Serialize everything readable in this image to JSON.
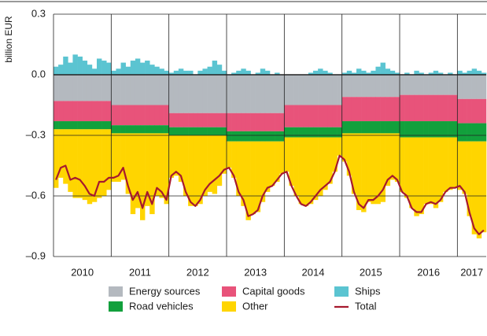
{
  "chart_data": {
    "type": "bar",
    "stacked": true,
    "ylabel": "billion EUR",
    "categories": [
      null,
      null,
      null,
      null,
      null,
      null,
      "2010",
      null,
      null,
      null,
      null,
      null,
      null,
      null,
      null,
      null,
      null,
      null,
      "2011",
      null,
      null,
      null,
      null,
      null,
      null,
      null,
      null,
      null,
      null,
      null,
      "2012",
      null,
      null,
      null,
      null,
      null,
      null,
      null,
      null,
      null,
      null,
      null,
      "2013",
      null,
      null,
      null,
      null,
      null,
      null,
      null,
      null,
      null,
      null,
      null,
      "2014",
      null,
      null,
      null,
      null,
      null,
      null,
      null,
      null,
      null,
      null,
      null,
      "2015",
      null,
      null,
      null,
      null,
      null,
      null,
      null,
      null,
      null,
      null,
      null,
      "2016",
      null,
      null,
      null,
      null,
      null,
      null,
      null,
      null,
      "2017",
      null,
      null
    ],
    "ylim": [
      -0.9,
      0.3
    ],
    "yticks": [
      0.3,
      {
        "value": 0,
        "label": "0.0"
      },
      {
        "value": -0.3,
        "label": "–0.3"
      },
      {
        "value": -0.6,
        "label": "–0.6"
      },
      {
        "value": -0.9,
        "label": "–0.9"
      }
    ],
    "grid": true,
    "series": [
      {
        "name": "Ships",
        "color": "#5bc4d1",
        "values": [
          0.04,
          0.05,
          0.09,
          0.06,
          0.1,
          0.09,
          0.07,
          0.05,
          0.03,
          0.08,
          0.07,
          0.06,
          0.02,
          0.03,
          0.06,
          0.04,
          0.07,
          0.08,
          0.06,
          0.07,
          0.05,
          0.04,
          0.03,
          0.02,
          0.01,
          0.02,
          0.03,
          0.02,
          0.02,
          0,
          0.02,
          0.03,
          0.04,
          0.07,
          0.05,
          0.02,
          0,
          0.01,
          0.02,
          0.03,
          0.02,
          0,
          0.01,
          0.03,
          0.02,
          0,
          0.01,
          0,
          0,
          0,
          0,
          0,
          0,
          0.01,
          0.02,
          0.03,
          0.02,
          0.01,
          0,
          0,
          0.01,
          0.02,
          0.01,
          0.03,
          0.02,
          0.01,
          0.02,
          0.04,
          0.06,
          0.03,
          0.02,
          0.01,
          0,
          0.01,
          0,
          0.02,
          0.01,
          0,
          0.01,
          0.02,
          0.01,
          0,
          0.01,
          0,
          0.02,
          0.01,
          0.02,
          0.03,
          0.02,
          0.01
        ]
      },
      {
        "name": "Energy sources",
        "color": "#b4b9bf",
        "values": [
          -0.13,
          -0.13,
          -0.13,
          -0.13,
          -0.13,
          -0.13,
          -0.13,
          -0.13,
          -0.13,
          -0.13,
          -0.13,
          -0.13,
          -0.15,
          -0.15,
          -0.15,
          -0.15,
          -0.15,
          -0.15,
          -0.15,
          -0.15,
          -0.15,
          -0.15,
          -0.15,
          -0.15,
          -0.19,
          -0.19,
          -0.19,
          -0.19,
          -0.19,
          -0.19,
          -0.19,
          -0.19,
          -0.19,
          -0.19,
          -0.19,
          -0.19,
          -0.19,
          -0.19,
          -0.19,
          -0.19,
          -0.19,
          -0.19,
          -0.19,
          -0.19,
          -0.19,
          -0.19,
          -0.19,
          -0.19,
          -0.15,
          -0.15,
          -0.15,
          -0.15,
          -0.15,
          -0.15,
          -0.15,
          -0.15,
          -0.15,
          -0.15,
          -0.15,
          -0.15,
          -0.11,
          -0.11,
          -0.11,
          -0.11,
          -0.11,
          -0.11,
          -0.11,
          -0.11,
          -0.11,
          -0.11,
          -0.11,
          -0.11,
          -0.1,
          -0.1,
          -0.1,
          -0.1,
          -0.1,
          -0.1,
          -0.1,
          -0.1,
          -0.1,
          -0.1,
          -0.1,
          -0.1,
          -0.12,
          -0.12,
          -0.12,
          -0.12,
          -0.12,
          -0.12
        ]
      },
      {
        "name": "Capital goods",
        "color": "#e8537a",
        "values": [
          -0.1,
          -0.1,
          -0.1,
          -0.1,
          -0.1,
          -0.1,
          -0.1,
          -0.1,
          -0.1,
          -0.1,
          -0.1,
          -0.1,
          -0.1,
          -0.1,
          -0.1,
          -0.1,
          -0.1,
          -0.1,
          -0.1,
          -0.1,
          -0.1,
          -0.1,
          -0.1,
          -0.1,
          -0.07,
          -0.07,
          -0.07,
          -0.07,
          -0.07,
          -0.07,
          -0.07,
          -0.07,
          -0.07,
          -0.07,
          -0.07,
          -0.07,
          -0.09,
          -0.09,
          -0.09,
          -0.09,
          -0.09,
          -0.09,
          -0.09,
          -0.09,
          -0.09,
          -0.09,
          -0.09,
          -0.09,
          -0.11,
          -0.11,
          -0.11,
          -0.11,
          -0.11,
          -0.11,
          -0.11,
          -0.11,
          -0.11,
          -0.11,
          -0.11,
          -0.11,
          -0.12,
          -0.12,
          -0.12,
          -0.12,
          -0.12,
          -0.12,
          -0.12,
          -0.12,
          -0.12,
          -0.12,
          -0.12,
          -0.12,
          -0.13,
          -0.13,
          -0.13,
          -0.13,
          -0.13,
          -0.13,
          -0.13,
          -0.13,
          -0.13,
          -0.13,
          -0.13,
          -0.13,
          -0.12,
          -0.12,
          -0.12,
          -0.12,
          -0.12,
          -0.12
        ]
      },
      {
        "name": "Road vehicles",
        "color": "#12a03c",
        "values": [
          -0.04,
          -0.04,
          -0.04,
          -0.04,
          -0.04,
          -0.04,
          -0.04,
          -0.04,
          -0.04,
          -0.04,
          -0.04,
          -0.04,
          -0.04,
          -0.04,
          -0.04,
          -0.04,
          -0.04,
          -0.04,
          -0.04,
          -0.04,
          -0.04,
          -0.04,
          -0.04,
          -0.04,
          -0.04,
          -0.04,
          -0.04,
          -0.04,
          -0.04,
          -0.04,
          -0.04,
          -0.04,
          -0.04,
          -0.04,
          -0.04,
          -0.04,
          -0.05,
          -0.05,
          -0.05,
          -0.05,
          -0.05,
          -0.05,
          -0.05,
          -0.05,
          -0.05,
          -0.05,
          -0.05,
          -0.05,
          -0.05,
          -0.05,
          -0.05,
          -0.05,
          -0.05,
          -0.05,
          -0.05,
          -0.05,
          -0.05,
          -0.05,
          -0.05,
          -0.05,
          -0.06,
          -0.06,
          -0.06,
          -0.06,
          -0.06,
          -0.06,
          -0.06,
          -0.06,
          -0.06,
          -0.06,
          -0.06,
          -0.06,
          -0.08,
          -0.08,
          -0.08,
          -0.08,
          -0.08,
          -0.08,
          -0.08,
          -0.08,
          -0.08,
          -0.08,
          -0.08,
          -0.08,
          -0.09,
          -0.09,
          -0.09,
          -0.09,
          -0.09,
          -0.09
        ]
      },
      {
        "name": "Other",
        "color": "#ffd500",
        "values": [
          -0.29,
          -0.24,
          -0.27,
          -0.31,
          -0.34,
          -0.34,
          -0.35,
          -0.37,
          -0.36,
          -0.34,
          -0.33,
          -0.3,
          -0.24,
          -0.24,
          -0.23,
          -0.3,
          -0.4,
          -0.37,
          -0.43,
          -0.36,
          -0.4,
          -0.31,
          -0.32,
          -0.35,
          -0.21,
          -0.2,
          -0.23,
          -0.3,
          -0.35,
          -0.35,
          -0.34,
          -0.3,
          -0.28,
          -0.29,
          -0.25,
          -0.19,
          -0.13,
          -0.18,
          -0.27,
          -0.32,
          -0.39,
          -0.36,
          -0.35,
          -0.3,
          -0.25,
          -0.22,
          -0.2,
          -0.16,
          -0.17,
          -0.24,
          -0.29,
          -0.33,
          -0.34,
          -0.33,
          -0.31,
          -0.29,
          -0.26,
          -0.23,
          -0.17,
          -0.09,
          -0.14,
          -0.21,
          -0.3,
          -0.38,
          -0.39,
          -0.34,
          -0.35,
          -0.35,
          -0.34,
          -0.26,
          -0.23,
          -0.24,
          -0.27,
          -0.3,
          -0.35,
          -0.39,
          -0.38,
          -0.33,
          -0.33,
          -0.35,
          -0.32,
          -0.27,
          -0.26,
          -0.25,
          -0.24,
          -0.26,
          -0.37,
          -0.46,
          -0.48,
          -0.45
        ]
      },
      {
        "name": "Total",
        "type": "line",
        "color": "#a6192e",
        "values": [
          -0.52,
          -0.46,
          -0.45,
          -0.52,
          -0.51,
          -0.52,
          -0.55,
          -0.59,
          -0.6,
          -0.53,
          -0.53,
          -0.51,
          -0.51,
          -0.5,
          -0.46,
          -0.55,
          -0.62,
          -0.58,
          -0.66,
          -0.58,
          -0.64,
          -0.56,
          -0.58,
          -0.62,
          -0.5,
          -0.48,
          -0.5,
          -0.58,
          -0.63,
          -0.65,
          -0.62,
          -0.57,
          -0.54,
          -0.52,
          -0.5,
          -0.47,
          -0.46,
          -0.5,
          -0.58,
          -0.62,
          -0.7,
          -0.69,
          -0.67,
          -0.6,
          -0.56,
          -0.55,
          -0.52,
          -0.49,
          -0.48,
          -0.55,
          -0.6,
          -0.64,
          -0.65,
          -0.63,
          -0.6,
          -0.57,
          -0.55,
          -0.53,
          -0.48,
          -0.4,
          -0.42,
          -0.48,
          -0.58,
          -0.64,
          -0.66,
          -0.62,
          -0.62,
          -0.6,
          -0.57,
          -0.52,
          -0.5,
          -0.52,
          -0.58,
          -0.6,
          -0.66,
          -0.68,
          -0.68,
          -0.64,
          -0.63,
          -0.64,
          -0.62,
          -0.58,
          -0.56,
          -0.56,
          -0.55,
          -0.58,
          -0.68,
          -0.76,
          -0.79,
          -0.77
        ]
      }
    ]
  }
}
